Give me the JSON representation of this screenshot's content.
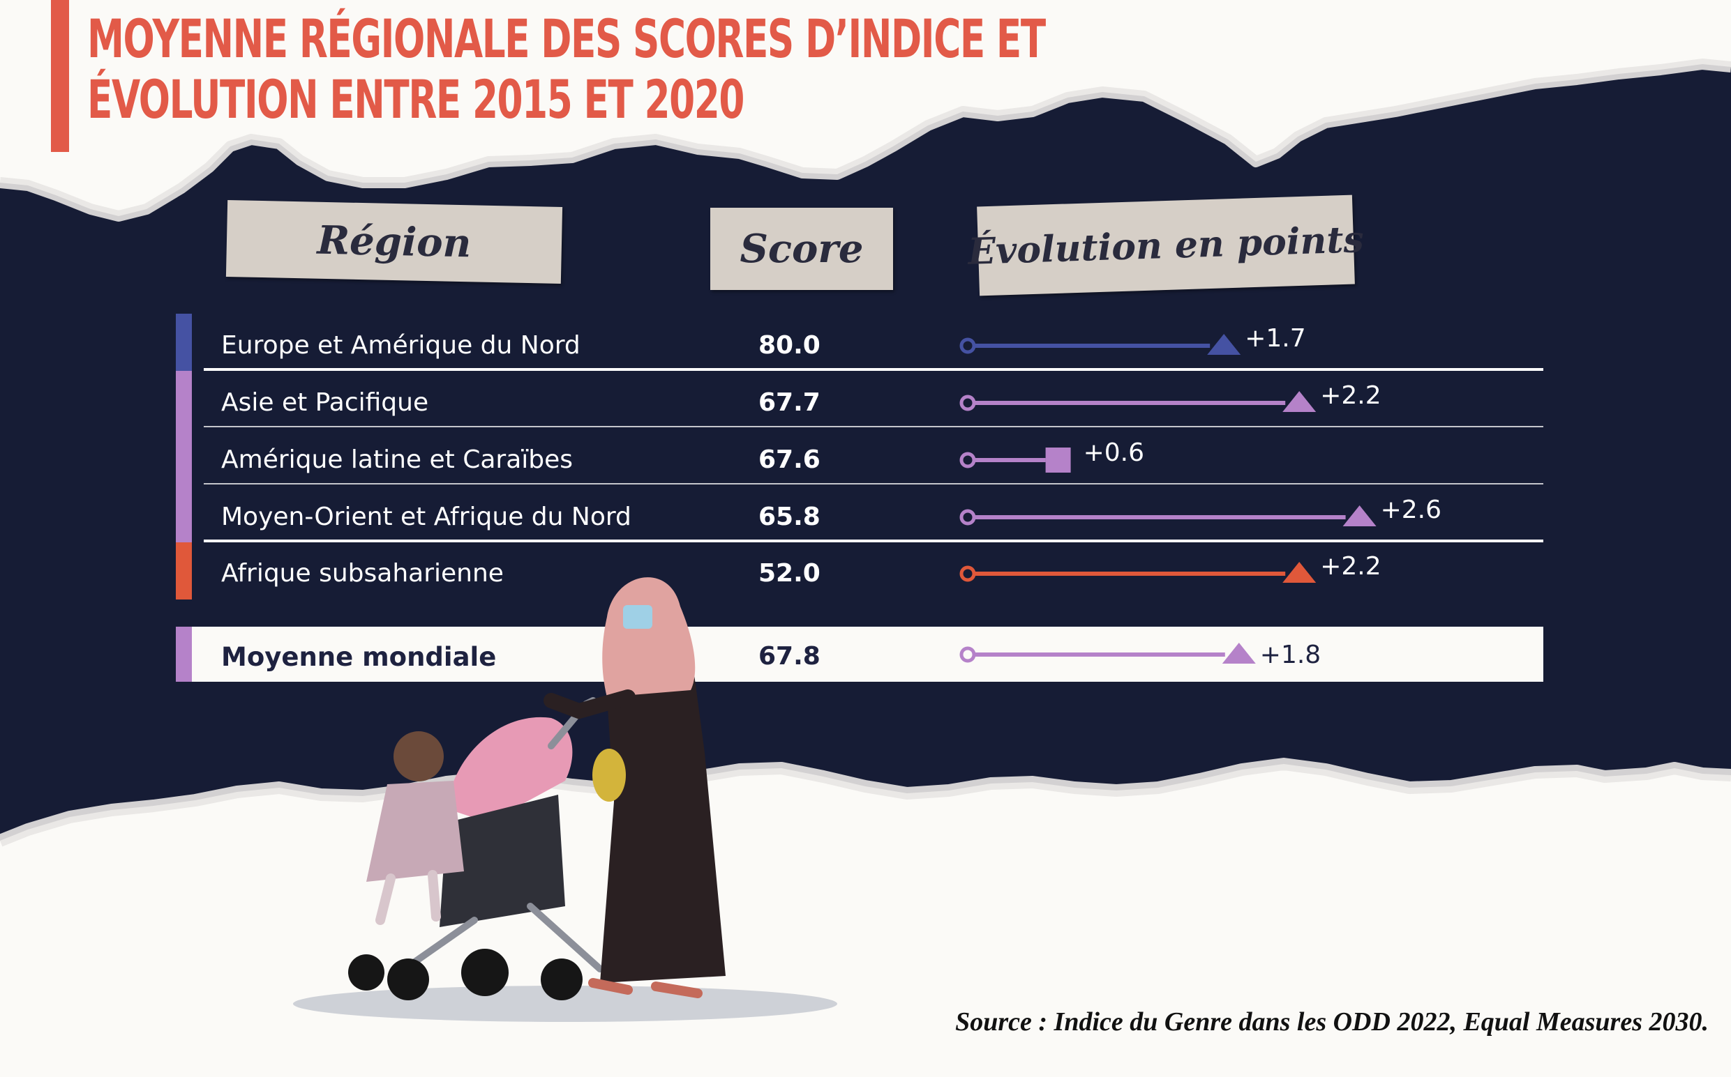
{
  "title_lines": [
    "MOYENNE RÉGIONALE DES SCORES D’INDICE ET",
    "ÉVOLUTION ENTRE 2015 ET 2020"
  ],
  "headers": {
    "region": "Région",
    "score": "Score",
    "evolution": "Évolution en points"
  },
  "colors": {
    "background": "#fbfaf7",
    "panel": "#161c35",
    "accent_title": "#e25a48",
    "europe": "#4552a3",
    "purple": "#b582c9",
    "orange": "#e0583a"
  },
  "chart_data": {
    "type": "table",
    "columns": [
      "Région",
      "Score",
      "Évolution en points"
    ],
    "rows": [
      {
        "region": "Europe et Amérique du Nord",
        "score": "80.0",
        "delta": "+1.7",
        "delta_value": 1.7,
        "marker": "triangle",
        "color": "#4552a3"
      },
      {
        "region": "Asie et Pacifique",
        "score": "67.7",
        "delta": "+2.2",
        "delta_value": 2.2,
        "marker": "triangle",
        "color": "#b582c9"
      },
      {
        "region": "Amérique latine et Caraïbes",
        "score": "67.6",
        "delta": "+0.6",
        "delta_value": 0.6,
        "marker": "square",
        "color": "#b582c9"
      },
      {
        "region": "Moyen-Orient et Afrique du Nord",
        "score": "65.8",
        "delta": "+2.6",
        "delta_value": 2.6,
        "marker": "triangle",
        "color": "#b582c9"
      },
      {
        "region": "Afrique subsaharienne",
        "score": "52.0",
        "delta": "+2.2",
        "delta_value": 2.2,
        "marker": "triangle",
        "color": "#e0583a"
      }
    ],
    "world": {
      "region": "Moyenne mondiale",
      "score": "67.8",
      "delta": "+1.8",
      "delta_value": 1.8,
      "marker": "triangle",
      "color": "#b582c9"
    }
  },
  "source": "Source : Indice du Genre dans les ODD 2022, Equal Measures 2030."
}
